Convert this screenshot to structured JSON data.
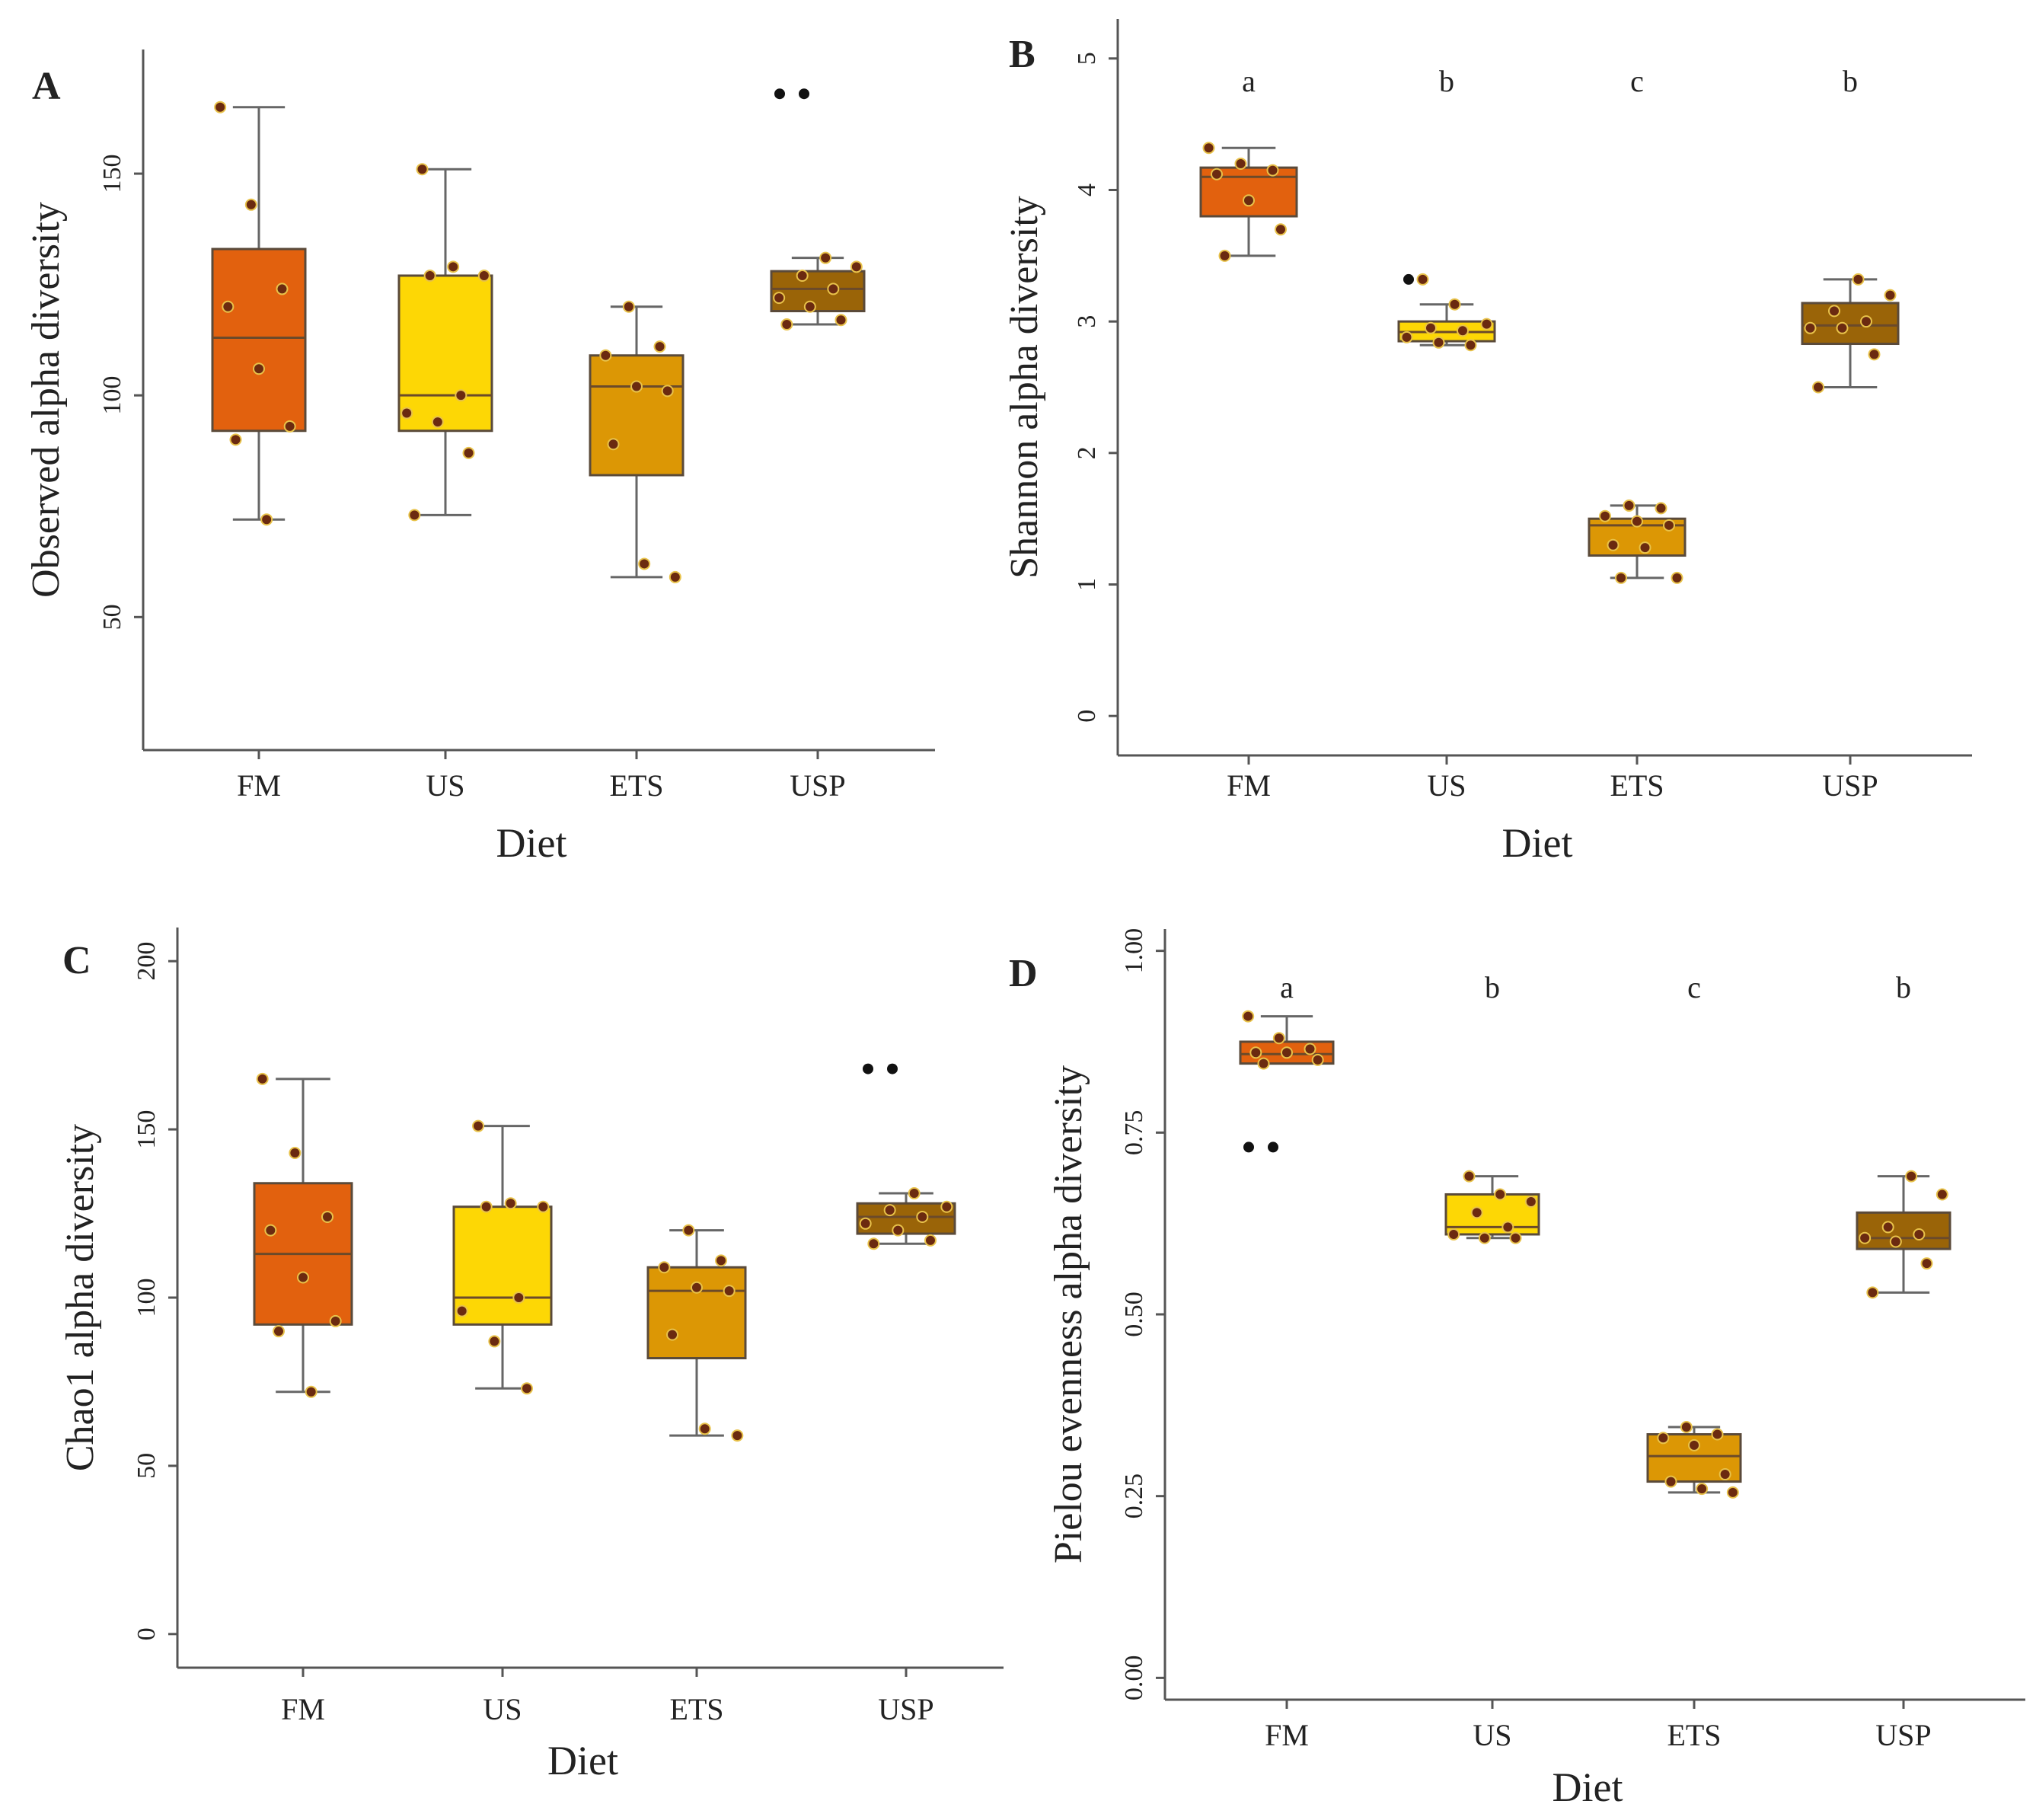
{
  "figure": {
    "xlabel": "Diet",
    "colors": {
      "FM": "#e2610e",
      "US": "#fdd705",
      "ETS": "#dc9705",
      "USP": "#9a6408"
    },
    "point_color": "#6b2a10"
  },
  "chart_data": [
    {
      "panel": "A",
      "type": "box",
      "ylabel": "Observed alpha diversity",
      "xlabel": "Diet",
      "categories": [
        "FM",
        "US",
        "ETS",
        "USP"
      ],
      "yticks": [
        50,
        100,
        150
      ],
      "ylim": [
        20,
        178
      ],
      "letters": [],
      "boxes": [
        {
          "q1": 92,
          "median": 113,
          "q3": 133,
          "whisker_low": 72,
          "whisker_high": 165,
          "outliers": []
        },
        {
          "q1": 92,
          "median": 100,
          "q3": 127,
          "whisker_low": 73,
          "whisker_high": 151,
          "outliers": []
        },
        {
          "q1": 82,
          "median": 102,
          "q3": 109,
          "whisker_low": 59,
          "whisker_high": 120,
          "outliers": []
        },
        {
          "q1": 119,
          "median": 124,
          "q3": 128,
          "whisker_low": 116,
          "whisker_high": 131,
          "outliers": [
            168,
            168
          ]
        }
      ],
      "points": [
        [
          165,
          143,
          124,
          120,
          106,
          93,
          90,
          72
        ],
        [
          151,
          129,
          127,
          127,
          100,
          96,
          94,
          87,
          73
        ],
        [
          120,
          111,
          109,
          102,
          101,
          89,
          62,
          59
        ],
        [
          131,
          129,
          127,
          124,
          122,
          120,
          117,
          116
        ]
      ]
    },
    {
      "panel": "B",
      "type": "box",
      "ylabel": "Shannon alpha diversity",
      "xlabel": "Diet",
      "categories": [
        "FM",
        "US",
        "ETS",
        "USP"
      ],
      "yticks": [
        0,
        1,
        2,
        3,
        4,
        5
      ],
      "ylim": [
        -0.3,
        5.3
      ],
      "letters": [
        "a",
        "b",
        "c",
        "b"
      ],
      "boxes": [
        {
          "q1": 3.8,
          "median": 4.1,
          "q3": 4.17,
          "whisker_low": 3.5,
          "whisker_high": 4.32,
          "outliers": []
        },
        {
          "q1": 2.85,
          "median": 2.92,
          "q3": 3.0,
          "whisker_low": 2.82,
          "whisker_high": 3.13,
          "outliers": [
            3.32
          ]
        },
        {
          "q1": 1.22,
          "median": 1.45,
          "q3": 1.5,
          "whisker_low": 1.05,
          "whisker_high": 1.6,
          "outliers": []
        },
        {
          "q1": 2.83,
          "median": 2.97,
          "q3": 3.14,
          "whisker_low": 2.5,
          "whisker_high": 3.32,
          "outliers": []
        }
      ],
      "points": [
        [
          4.32,
          4.2,
          4.15,
          4.12,
          3.92,
          3.7,
          3.5
        ],
        [
          3.32,
          3.13,
          2.98,
          2.95,
          2.93,
          2.88,
          2.84,
          2.82
        ],
        [
          1.6,
          1.58,
          1.52,
          1.48,
          1.45,
          1.3,
          1.28,
          1.05,
          1.05
        ],
        [
          3.32,
          3.2,
          3.08,
          3.0,
          2.95,
          2.95,
          2.75,
          2.5
        ]
      ]
    },
    {
      "panel": "C",
      "type": "box",
      "ylabel": "Chao1 alpha diversity",
      "xlabel": "Diet",
      "categories": [
        "FM",
        "US",
        "ETS",
        "USP"
      ],
      "yticks": [
        0,
        50,
        100,
        150,
        200
      ],
      "ylim": [
        -10,
        210
      ],
      "letters": [],
      "boxes": [
        {
          "q1": 92,
          "median": 113,
          "q3": 134,
          "whisker_low": 72,
          "whisker_high": 165,
          "outliers": []
        },
        {
          "q1": 92,
          "median": 100,
          "q3": 127,
          "whisker_low": 73,
          "whisker_high": 151,
          "outliers": []
        },
        {
          "q1": 82,
          "median": 102,
          "q3": 109,
          "whisker_low": 59,
          "whisker_high": 120,
          "outliers": []
        },
        {
          "q1": 119,
          "median": 124,
          "q3": 128,
          "whisker_low": 116,
          "whisker_high": 131,
          "outliers": [
            168,
            168
          ]
        }
      ],
      "points": [
        [
          165,
          143,
          124,
          120,
          106,
          93,
          90,
          72
        ],
        [
          151,
          128,
          127,
          127,
          100,
          96,
          87,
          73
        ],
        [
          120,
          111,
          109,
          103,
          102,
          89,
          61,
          59
        ],
        [
          131,
          127,
          126,
          124,
          122,
          120,
          117,
          116
        ]
      ]
    },
    {
      "panel": "D",
      "type": "box",
      "ylabel": "Pielou evenness  alpha diversity",
      "xlabel": "Diet",
      "categories": [
        "FM",
        "US",
        "ETS",
        "USP"
      ],
      "yticks": [
        0.0,
        0.25,
        0.5,
        0.75,
        1.0
      ],
      "ytick_labels": [
        "0.00",
        "0.25",
        "0.50",
        "0.75",
        "1.00"
      ],
      "ylim": [
        -0.03,
        1.03
      ],
      "letters": [
        "a",
        "b",
        "c",
        "b"
      ],
      "boxes": [
        {
          "q1": 0.845,
          "median": 0.858,
          "q3": 0.875,
          "whisker_low": 0.845,
          "whisker_high": 0.91,
          "outliers": [
            0.73,
            0.73
          ]
        },
        {
          "q1": 0.61,
          "median": 0.62,
          "q3": 0.665,
          "whisker_low": 0.605,
          "whisker_high": 0.69,
          "outliers": []
        },
        {
          "q1": 0.27,
          "median": 0.305,
          "q3": 0.335,
          "whisker_low": 0.255,
          "whisker_high": 0.345,
          "outliers": []
        },
        {
          "q1": 0.59,
          "median": 0.605,
          "q3": 0.64,
          "whisker_low": 0.53,
          "whisker_high": 0.69,
          "outliers": []
        }
      ],
      "points": [
        [
          0.91,
          0.88,
          0.865,
          0.86,
          0.86,
          0.85,
          0.845
        ],
        [
          0.69,
          0.665,
          0.655,
          0.64,
          0.62,
          0.61,
          0.605,
          0.605
        ],
        [
          0.345,
          0.335,
          0.33,
          0.32,
          0.28,
          0.27,
          0.26,
          0.255
        ],
        [
          0.69,
          0.665,
          0.62,
          0.61,
          0.605,
          0.6,
          0.57,
          0.53
        ]
      ]
    }
  ]
}
